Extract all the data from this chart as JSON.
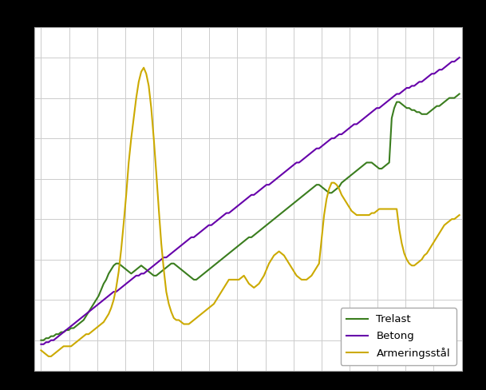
{
  "series": [
    {
      "name": "Trelast",
      "color": "#3a7d1e",
      "linewidth": 1.5,
      "data": [
        100,
        100,
        101,
        101,
        102,
        102,
        103,
        103,
        104,
        104,
        105,
        105,
        106,
        106,
        107,
        108,
        109,
        110,
        112,
        114,
        116,
        118,
        120,
        122,
        125,
        128,
        130,
        133,
        135,
        137,
        138,
        138,
        137,
        136,
        135,
        134,
        133,
        134,
        135,
        136,
        137,
        136,
        135,
        134,
        133,
        132,
        132,
        133,
        134,
        135,
        136,
        137,
        138,
        138,
        137,
        136,
        135,
        134,
        133,
        132,
        131,
        130,
        130,
        131,
        132,
        133,
        134,
        135,
        136,
        137,
        138,
        139,
        140,
        141,
        142,
        143,
        144,
        145,
        146,
        147,
        148,
        149,
        150,
        151,
        151,
        152,
        153,
        154,
        155,
        156,
        157,
        158,
        159,
        160,
        161,
        162,
        163,
        164,
        165,
        166,
        167,
        168,
        169,
        170,
        171,
        172,
        173,
        174,
        175,
        176,
        177,
        177,
        176,
        175,
        174,
        173,
        173,
        174,
        175,
        176,
        178,
        179,
        180,
        181,
        182,
        183,
        184,
        185,
        186,
        187,
        188,
        188,
        188,
        187,
        186,
        185,
        185,
        186,
        187,
        188,
        210,
        215,
        218,
        218,
        217,
        216,
        215,
        215,
        214,
        214,
        213,
        213,
        212,
        212,
        212,
        213,
        214,
        215,
        216,
        216,
        217,
        218,
        219,
        220,
        220,
        220,
        221,
        222
      ]
    },
    {
      "name": "Betong",
      "color": "#6600aa",
      "linewidth": 1.5,
      "data": [
        98,
        98,
        99,
        99,
        100,
        100,
        101,
        102,
        103,
        104,
        105,
        106,
        107,
        108,
        109,
        110,
        111,
        112,
        113,
        114,
        115,
        116,
        117,
        118,
        119,
        120,
        121,
        122,
        123,
        124,
        124,
        125,
        126,
        127,
        128,
        129,
        130,
        131,
        132,
        132,
        133,
        133,
        134,
        135,
        136,
        137,
        138,
        139,
        140,
        141,
        141,
        142,
        143,
        144,
        145,
        146,
        147,
        148,
        149,
        150,
        151,
        151,
        152,
        153,
        154,
        155,
        156,
        157,
        157,
        158,
        159,
        160,
        161,
        162,
        163,
        163,
        164,
        165,
        166,
        167,
        168,
        169,
        170,
        171,
        172,
        172,
        173,
        174,
        175,
        176,
        177,
        177,
        178,
        179,
        180,
        181,
        182,
        183,
        184,
        185,
        186,
        187,
        188,
        188,
        189,
        190,
        191,
        192,
        193,
        194,
        195,
        195,
        196,
        197,
        198,
        199,
        200,
        200,
        201,
        202,
        202,
        203,
        204,
        205,
        206,
        207,
        207,
        208,
        209,
        210,
        211,
        212,
        213,
        214,
        215,
        215,
        216,
        217,
        218,
        219,
        220,
        221,
        222,
        222,
        223,
        224,
        225,
        225,
        226,
        226,
        227,
        228,
        228,
        229,
        230,
        231,
        232,
        232,
        233,
        234,
        234,
        235,
        236,
        237,
        238,
        238,
        239,
        240
      ]
    },
    {
      "name": "Armeringsstål",
      "color": "#ccaa00",
      "linewidth": 1.5,
      "data": [
        95,
        94,
        93,
        92,
        92,
        93,
        94,
        95,
        96,
        97,
        97,
        97,
        97,
        98,
        99,
        100,
        101,
        102,
        103,
        103,
        104,
        105,
        106,
        107,
        108,
        109,
        111,
        113,
        116,
        120,
        126,
        134,
        145,
        158,
        172,
        188,
        200,
        210,
        220,
        228,
        233,
        235,
        232,
        226,
        215,
        200,
        183,
        165,
        148,
        135,
        124,
        118,
        114,
        111,
        110,
        110,
        109,
        108,
        108,
        108,
        109,
        110,
        111,
        112,
        113,
        114,
        115,
        116,
        117,
        118,
        120,
        122,
        124,
        126,
        128,
        130,
        130,
        130,
        130,
        130,
        131,
        132,
        130,
        128,
        127,
        126,
        127,
        128,
        130,
        132,
        135,
        138,
        140,
        142,
        143,
        144,
        143,
        142,
        140,
        138,
        136,
        134,
        132,
        131,
        130,
        130,
        130,
        131,
        132,
        134,
        136,
        138,
        150,
        162,
        170,
        175,
        178,
        178,
        177,
        175,
        172,
        170,
        168,
        166,
        164,
        163,
        162,
        162,
        162,
        162,
        162,
        162,
        163,
        163,
        164,
        165,
        165,
        165,
        165,
        165,
        165,
        165,
        165,
        155,
        148,
        143,
        140,
        138,
        137,
        137,
        138,
        139,
        140,
        142,
        143,
        145,
        147,
        149,
        151,
        153,
        155,
        157,
        158,
        159,
        160,
        160,
        161,
        162
      ]
    }
  ],
  "n_points": 168,
  "x_start": 2005.0,
  "x_end": 2019.916,
  "xlim": [
    2004.75,
    2020.0
  ],
  "ylim": [
    85,
    255
  ],
  "yticks": [
    100,
    120,
    140,
    160,
    180,
    200,
    220,
    240
  ],
  "xticks": [
    2005,
    2006,
    2007,
    2008,
    2009,
    2010,
    2011,
    2012,
    2013,
    2014,
    2015,
    2016,
    2017,
    2018,
    2019
  ],
  "grid_color": "#cccccc",
  "plot_bg": "#ffffff",
  "fig_bg": "#000000",
  "legend_loc": "lower right",
  "legend_fontsize": 9.5,
  "tick_fontsize": 8.5
}
